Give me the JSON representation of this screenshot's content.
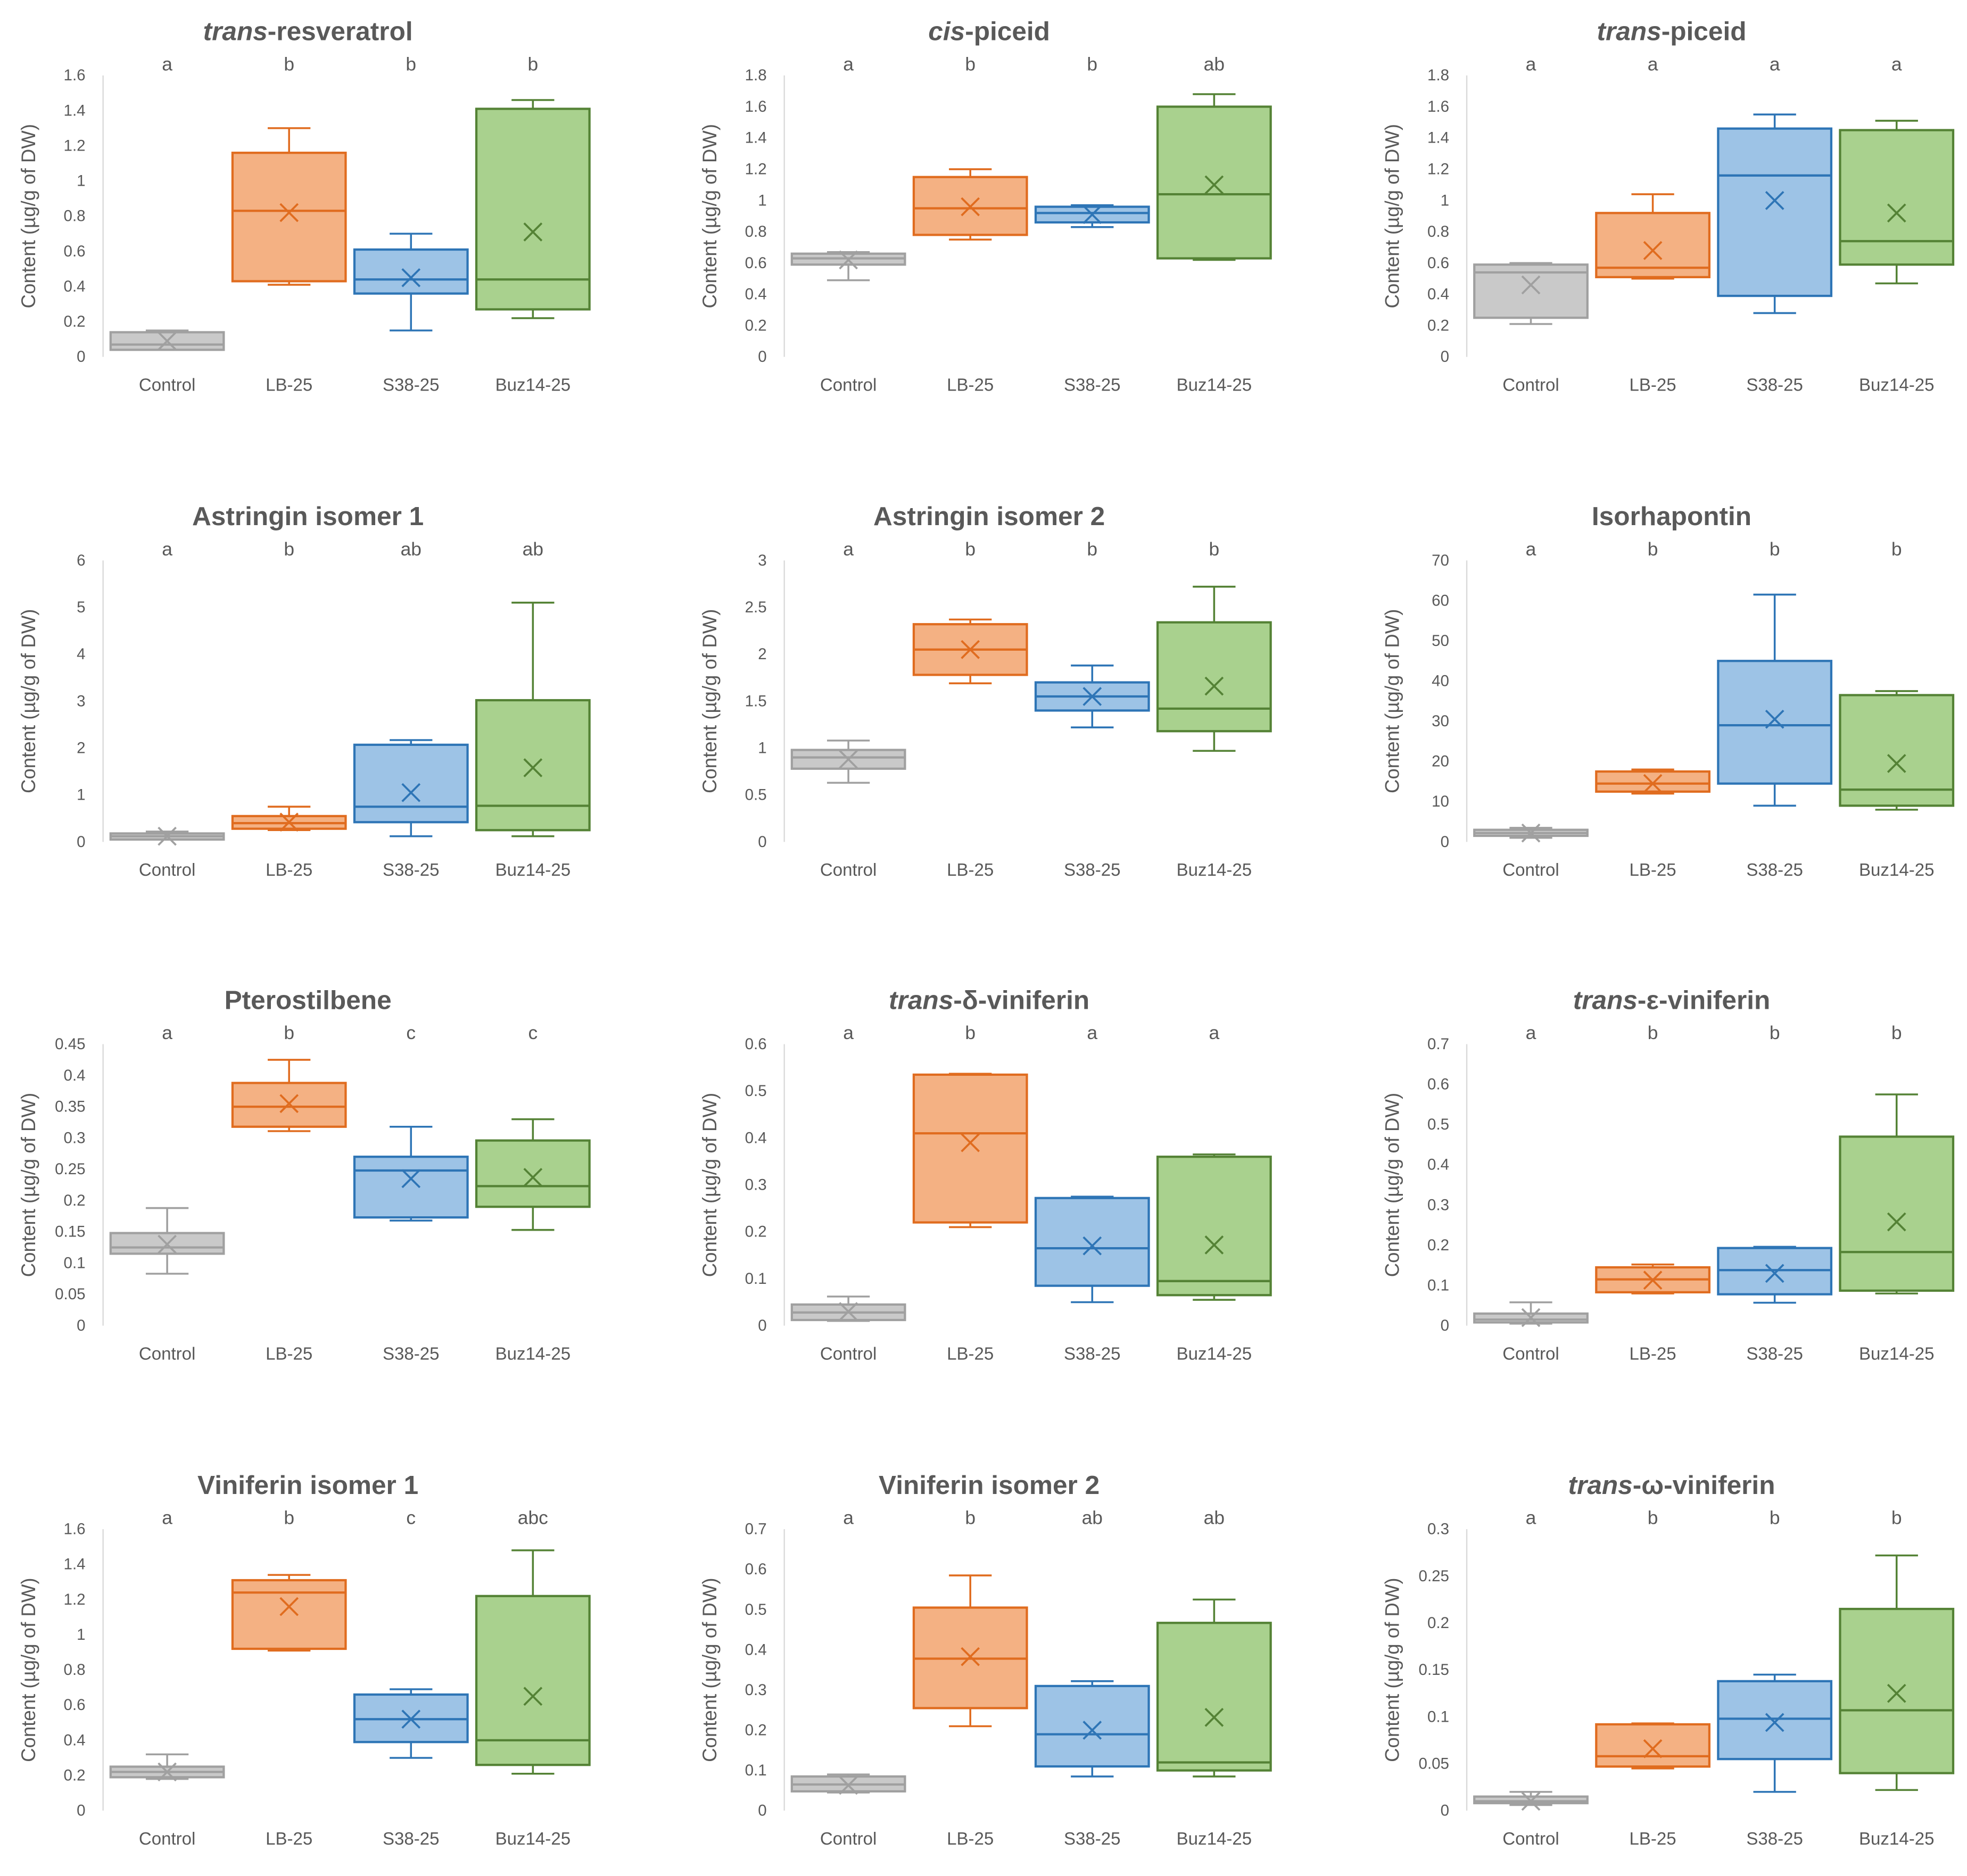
{
  "chart_data": {
    "type": "boxplot",
    "categories": [
      "Control",
      "LB-25",
      "S38-25",
      "Buz14-25"
    ],
    "colors": {
      "Control": {
        "fill": "#c9c9c9",
        "stroke": "#a0a0a0"
      },
      "LB-25": {
        "fill": "#f4b183",
        "stroke": "#e06c1f"
      },
      "S38-25": {
        "fill": "#9dc3e6",
        "stroke": "#2e75b6"
      },
      "Buz14-25": {
        "fill": "#a9d18e",
        "stroke": "#548235"
      }
    },
    "ylabel": "Content (µg/g of DW)",
    "panels": [
      {
        "title_italic": "trans",
        "title_rest": "-resveratrol",
        "ylim": [
          0,
          1.6
        ],
        "ticks": [
          "0",
          "0.2",
          "0.4",
          "0.6",
          "0.8",
          "1",
          "1.2",
          "1.4",
          "1.6"
        ],
        "letters": [
          "a",
          "b",
          "b",
          "b"
        ],
        "boxes": [
          [
            0.04,
            0.04,
            0.07,
            0.14,
            0.15,
            0.09
          ],
          [
            0.41,
            0.43,
            0.83,
            1.16,
            1.3,
            0.82
          ],
          [
            0.15,
            0.36,
            0.44,
            0.61,
            0.7,
            0.45
          ],
          [
            0.22,
            0.27,
            0.44,
            1.41,
            1.46,
            0.71
          ]
        ]
      },
      {
        "title_italic": "cis",
        "title_rest": "-piceid",
        "ylim": [
          0,
          1.8
        ],
        "ticks": [
          "0",
          "0.2",
          "0.4",
          "0.6",
          "0.8",
          "1",
          "1.2",
          "1.4",
          "1.6",
          "1.8"
        ],
        "letters": [
          "a",
          "b",
          "b",
          "ab"
        ],
        "boxes": [
          [
            0.49,
            0.59,
            0.63,
            0.66,
            0.67,
            0.62
          ],
          [
            0.75,
            0.78,
            0.95,
            1.15,
            1.2,
            0.96
          ],
          [
            0.83,
            0.86,
            0.92,
            0.96,
            0.97,
            0.91
          ],
          [
            0.62,
            0.63,
            1.04,
            1.6,
            1.68,
            1.1
          ]
        ]
      },
      {
        "title_italic": "trans",
        "title_rest": "-piceid",
        "ylim": [
          0,
          1.8
        ],
        "ticks": [
          "0",
          "0.2",
          "0.4",
          "0.6",
          "0.8",
          "1",
          "1.2",
          "1.4",
          "1.6",
          "1.8"
        ],
        "letters": [
          "a",
          "a",
          "a",
          "a"
        ],
        "boxes": [
          [
            0.21,
            0.25,
            0.54,
            0.59,
            0.6,
            0.46
          ],
          [
            0.5,
            0.51,
            0.57,
            0.92,
            1.04,
            0.68
          ],
          [
            0.28,
            0.39,
            1.16,
            1.46,
            1.55,
            1.0
          ],
          [
            0.47,
            0.59,
            0.74,
            1.45,
            1.51,
            0.92
          ]
        ]
      },
      {
        "title_italic": "",
        "title_rest": "Astringin isomer 1",
        "ylim": [
          0,
          6
        ],
        "ticks": [
          "0",
          "1",
          "2",
          "3",
          "4",
          "5",
          "6"
        ],
        "letters": [
          "a",
          "b",
          "ab",
          "ab"
        ],
        "boxes": [
          [
            0.05,
            0.05,
            0.12,
            0.18,
            0.22,
            0.12
          ],
          [
            0.25,
            0.28,
            0.4,
            0.55,
            0.75,
            0.42
          ],
          [
            0.12,
            0.42,
            0.75,
            2.07,
            2.17,
            1.05
          ],
          [
            0.12,
            0.25,
            0.77,
            3.02,
            5.1,
            1.58
          ]
        ]
      },
      {
        "title_italic": "",
        "title_rest": "Astringin isomer 2",
        "ylim": [
          0,
          3
        ],
        "ticks": [
          "0",
          "0.5",
          "1",
          "1.5",
          "2",
          "2.5",
          "3"
        ],
        "letters": [
          "a",
          "b",
          "b",
          "b"
        ],
        "boxes": [
          [
            0.63,
            0.78,
            0.9,
            0.98,
            1.08,
            0.88
          ],
          [
            1.69,
            1.78,
            2.05,
            2.32,
            2.37,
            2.05
          ],
          [
            1.22,
            1.4,
            1.55,
            1.7,
            1.88,
            1.55
          ],
          [
            0.97,
            1.18,
            1.42,
            2.34,
            2.72,
            1.66
          ]
        ]
      },
      {
        "title_italic": "",
        "title_rest": "Isorhapontin",
        "ylim": [
          0,
          70
        ],
        "ticks": [
          "0",
          "10",
          "20",
          "30",
          "40",
          "50",
          "60",
          "70"
        ],
        "letters": [
          "a",
          "b",
          "b",
          "b"
        ],
        "boxes": [
          [
            1,
            1.5,
            2.2,
            3,
            3.5,
            2.2
          ],
          [
            12,
            12.5,
            14.5,
            17.5,
            18,
            14.5
          ],
          [
            9,
            14.5,
            29,
            45,
            61.5,
            30.5
          ],
          [
            8,
            9,
            13,
            36.5,
            37.5,
            19.5
          ]
        ]
      },
      {
        "title_italic": "",
        "title_rest": "Pterostilbene",
        "ylim": [
          0,
          0.45
        ],
        "ticks": [
          "0",
          "0.05",
          "0.1",
          "0.15",
          "0.2",
          "0.25",
          "0.3",
          "0.35",
          "0.4",
          "0.45"
        ],
        "letters": [
          "a",
          "b",
          "c",
          "c"
        ],
        "boxes": [
          [
            0.083,
            0.115,
            0.125,
            0.148,
            0.188,
            0.13
          ],
          [
            0.311,
            0.318,
            0.35,
            0.388,
            0.425,
            0.355
          ],
          [
            0.168,
            0.173,
            0.248,
            0.27,
            0.318,
            0.235
          ],
          [
            0.153,
            0.19,
            0.223,
            0.296,
            0.33,
            0.237
          ]
        ]
      },
      {
        "title_italic": "trans",
        "title_rest": "-δ-viniferin",
        "ylim": [
          0,
          0.6
        ],
        "ticks": [
          "0",
          "0.1",
          "0.2",
          "0.3",
          "0.4",
          "0.5",
          "0.6"
        ],
        "letters": [
          "a",
          "b",
          "a",
          "a"
        ],
        "boxes": [
          [
            0.01,
            0.012,
            0.028,
            0.045,
            0.062,
            0.03
          ],
          [
            0.21,
            0.22,
            0.41,
            0.535,
            0.537,
            0.39
          ],
          [
            0.05,
            0.085,
            0.165,
            0.272,
            0.275,
            0.17
          ],
          [
            0.055,
            0.065,
            0.095,
            0.36,
            0.365,
            0.172
          ]
        ]
      },
      {
        "title_italic": "trans",
        "title_rest": "-ε-viniferin",
        "ylim": [
          0,
          0.7
        ],
        "ticks": [
          "0",
          "0.1",
          "0.2",
          "0.3",
          "0.4",
          "0.5",
          "0.6",
          "0.7"
        ],
        "letters": [
          "a",
          "b",
          "b",
          "b"
        ],
        "boxes": [
          [
            0.005,
            0.008,
            0.015,
            0.03,
            0.058,
            0.02
          ],
          [
            0.08,
            0.083,
            0.115,
            0.145,
            0.152,
            0.113
          ],
          [
            0.057,
            0.078,
            0.138,
            0.193,
            0.196,
            0.13
          ],
          [
            0.08,
            0.087,
            0.183,
            0.47,
            0.575,
            0.258
          ]
        ]
      },
      {
        "title_italic": "",
        "title_rest": "Viniferin isomer 1",
        "ylim": [
          0,
          1.6
        ],
        "ticks": [
          "0",
          "0.2",
          "0.4",
          "0.6",
          "0.8",
          "1",
          "1.2",
          "1.4",
          "1.6"
        ],
        "letters": [
          "a",
          "b",
          "c",
          "abc"
        ],
        "boxes": [
          [
            0.18,
            0.19,
            0.22,
            0.25,
            0.32,
            0.22
          ],
          [
            0.91,
            0.92,
            1.24,
            1.31,
            1.34,
            1.16
          ],
          [
            0.3,
            0.39,
            0.52,
            0.66,
            0.69,
            0.52
          ],
          [
            0.21,
            0.26,
            0.4,
            1.22,
            1.48,
            0.65
          ]
        ]
      },
      {
        "title_italic": "",
        "title_rest": "Viniferin isomer 2",
        "ylim": [
          0,
          0.7
        ],
        "ticks": [
          "0",
          "0.1",
          "0.2",
          "0.3",
          "0.4",
          "0.5",
          "0.6",
          "0.7"
        ],
        "letters": [
          "a",
          "b",
          "ab",
          "ab"
        ],
        "boxes": [
          [
            0.045,
            0.048,
            0.065,
            0.085,
            0.09,
            0.063
          ],
          [
            0.21,
            0.255,
            0.378,
            0.505,
            0.585,
            0.383
          ],
          [
            0.085,
            0.11,
            0.19,
            0.31,
            0.322,
            0.2
          ],
          [
            0.085,
            0.1,
            0.12,
            0.467,
            0.525,
            0.232
          ]
        ]
      },
      {
        "title_italic": "trans",
        "title_rest": "-ω-viniferin",
        "ylim": [
          0,
          0.3
        ],
        "ticks": [
          "0",
          "0.05",
          "0.1",
          "0.15",
          "0.2",
          "0.25",
          "0.3"
        ],
        "letters": [
          "a",
          "b",
          "b",
          "b"
        ],
        "boxes": [
          [
            0.006,
            0.008,
            0.01,
            0.015,
            0.02,
            0.01
          ],
          [
            0.045,
            0.047,
            0.058,
            0.092,
            0.093,
            0.066
          ],
          [
            0.02,
            0.055,
            0.098,
            0.138,
            0.145,
            0.094
          ],
          [
            0.022,
            0.04,
            0.107,
            0.215,
            0.272,
            0.125
          ]
        ]
      }
    ],
    "box_value_order": [
      "min",
      "q1",
      "median",
      "q3",
      "max",
      "mean"
    ]
  }
}
